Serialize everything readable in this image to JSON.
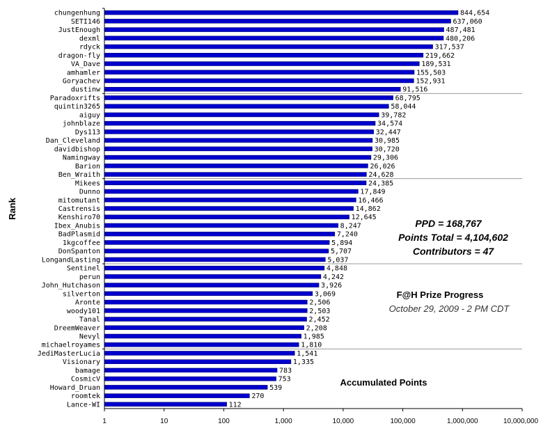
{
  "chart_data": {
    "type": "bar",
    "orientation": "horizontal",
    "x_scale": "log",
    "xlim": [
      1,
      10000000
    ],
    "x_ticks": [
      "1",
      "10",
      "100",
      "1,000",
      "10,000",
      "100,000",
      "1,000,000",
      "10,000,000"
    ],
    "ylabel": "Rank",
    "bar_color": "#0000cc",
    "grid": "horizontal group lines every 10 ranks",
    "categories": [
      "chungenhung",
      "SETI146",
      "JustEnough",
      "dexml",
      "rdyck",
      "dragon-fly",
      "VA_Dave",
      "amhamler",
      "Goryachev",
      "dustinw",
      "Paradoxrifts",
      "quintin3265",
      "aiguy",
      "johnblaze",
      "Dys113",
      "Dan_Cleveland",
      "davidbishop",
      "Namingway",
      "Barion",
      "Ben_Wraith",
      "Mikees",
      "Dunno",
      "mitomutant",
      "Castrensis",
      "Kenshiro70",
      "Ibex_Anubis",
      "BadPlasmid",
      "1kgcoffee",
      "DonSpanton",
      "LongandLasting",
      "Sentinel",
      "perun",
      "John_Hutchason",
      "silverton",
      "Aronte",
      "woody101",
      "Tanal",
      "DreemWeaver",
      "Nevyl",
      "michaelroyames",
      "JediMasterLucia",
      "Visionary",
      "bamage",
      "CosmicV",
      "Howard_Druan",
      "roomtek",
      "Lance-WI"
    ],
    "values": [
      844654,
      637060,
      487481,
      480206,
      317537,
      219662,
      189531,
      155503,
      152931,
      91516,
      68795,
      58044,
      39782,
      34574,
      32447,
      30985,
      30720,
      29306,
      26026,
      24628,
      24385,
      17849,
      16466,
      14862,
      12645,
      8247,
      7240,
      5894,
      5707,
      5037,
      4848,
      4242,
      3926,
      3069,
      2506,
      2503,
      2452,
      2208,
      1985,
      1810,
      1541,
      1335,
      783,
      753,
      539,
      270,
      112
    ],
    "value_labels": [
      "844,654",
      "637,060",
      "487,481",
      "480,206",
      "317,537",
      "219,662",
      "189,531",
      "155,503",
      "152,931",
      "91,516",
      "68,795",
      "58,044",
      "39,782",
      "34,574",
      "32,447",
      "30,985",
      "30,720",
      "29,306",
      "26,026",
      "24,628",
      "24,385",
      "17,849",
      "16,466",
      "14,862",
      "12,645",
      "8,247",
      "7,240",
      "5,894",
      "5,707",
      "5,037",
      "4,848",
      "4,242",
      "3,926",
      "3,069",
      "2,506",
      "2,503",
      "2,452",
      "2,208",
      "1,985",
      "1,810",
      "1,541",
      "1,335",
      "783",
      "753",
      "539",
      "270",
      "112"
    ]
  },
  "annotations": {
    "ppd": "PPD = 168,767",
    "points_total": "Points Total = 4,104,602",
    "contributors": "Contributors = 47",
    "title": "F@H Prize Progress",
    "date": "October 29, 2009 - 2 PM CDT",
    "accumulated": "Accumulated Points"
  }
}
